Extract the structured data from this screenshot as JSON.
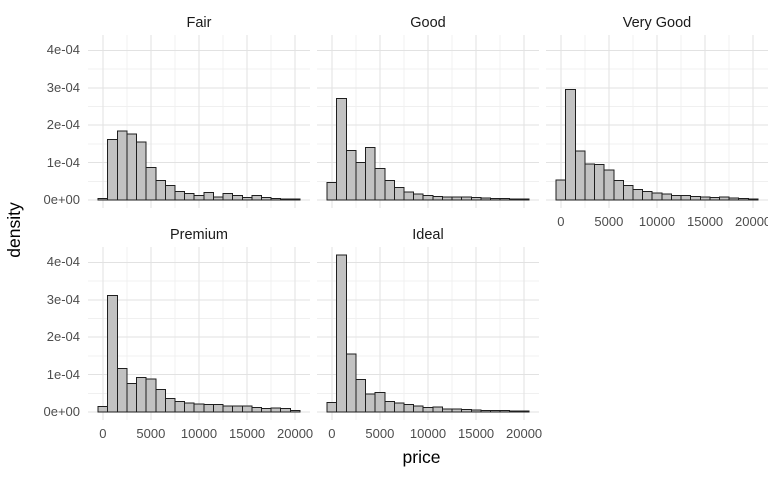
{
  "chart_data": {
    "type": "histogram",
    "title": "",
    "xlabel": "price",
    "ylabel": "density",
    "faceted_by": "cut",
    "facet_layout": {
      "ncol": 3,
      "nrow": 2,
      "style": "facet-wrap, no strip background"
    },
    "grid": {
      "major": true,
      "minor": true,
      "legend": "none",
      "panel_background": "#ffffff"
    },
    "bin_width": 1000,
    "bin_centers": [
      0,
      1000,
      2000,
      3000,
      4000,
      5000,
      6000,
      7000,
      8000,
      9000,
      10000,
      11000,
      12000,
      13000,
      14000,
      15000,
      16000,
      17000,
      18000,
      19000,
      20000
    ],
    "xlim": [
      -1550,
      21550
    ],
    "ylim": [
      -2.1e-05,
      0.000441
    ],
    "x_ticks": [
      {
        "value": 0,
        "label": "0"
      },
      {
        "value": 5000,
        "label": "5000"
      },
      {
        "value": 10000,
        "label": "10000"
      },
      {
        "value": 15000,
        "label": "15000"
      },
      {
        "value": 20000,
        "label": "20000"
      }
    ],
    "x_minor": [
      2500,
      7500,
      12500,
      17500
    ],
    "y_ticks": [
      {
        "value": 0,
        "label": "0e+00"
      },
      {
        "value": 0.0001,
        "label": "1e-04"
      },
      {
        "value": 0.0002,
        "label": "2e-04"
      },
      {
        "value": 0.0003,
        "label": "3e-04"
      },
      {
        "value": 0.0004,
        "label": "4e-04"
      }
    ],
    "y_minor": [
      5e-05,
      0.00015,
      0.00025,
      0.00035
    ],
    "colors": {
      "bar_fill": "#c2c2c2",
      "bar_stroke": "#1f1f1f",
      "grid_major": "#e2e2e2",
      "grid_minor": "#f0f0f0",
      "tick_text": "#4d4d4d",
      "title_text": "#1a1a1a"
    },
    "facets": [
      {
        "label": "Fair",
        "row": 0,
        "col": 0,
        "show_x_axis": false,
        "show_y_axis": true,
        "densities": [
          5e-06,
          0.000162,
          0.000185,
          0.000177,
          0.000155,
          8.7e-05,
          5.2e-05,
          3.9e-05,
          2.3e-05,
          1.8e-05,
          1.2e-05,
          2.1e-05,
          9e-06,
          1.8e-05,
          1.2e-05,
          7e-06,
          1.2e-05,
          7e-06,
          4e-06,
          3e-06,
          1e-06
        ]
      },
      {
        "label": "Good",
        "row": 0,
        "col": 1,
        "show_x_axis": false,
        "show_y_axis": false,
        "densities": [
          4.7e-05,
          0.000271,
          0.000133,
          0.0001,
          0.00014,
          8.5e-05,
          5.3e-05,
          3.4e-05,
          2.2e-05,
          1.6e-05,
          1.3e-05,
          1e-05,
          9e-06,
          8e-06,
          8e-06,
          7e-06,
          6e-06,
          5e-06,
          5e-06,
          3e-06,
          2e-06
        ]
      },
      {
        "label": "Very Good",
        "row": 0,
        "col": 2,
        "show_x_axis": true,
        "show_y_axis": false,
        "densities": [
          5.4e-05,
          0.000295,
          0.000131,
          9.7e-05,
          9.5e-05,
          8e-05,
          5.2e-05,
          3.9e-05,
          2.8e-05,
          2.3e-05,
          1.9e-05,
          1.7e-05,
          1.3e-05,
          1.2e-05,
          1e-05,
          9e-06,
          7e-06,
          8e-06,
          6e-06,
          5e-06,
          3e-06
        ]
      },
      {
        "label": "Premium",
        "row": 1,
        "col": 0,
        "show_x_axis": true,
        "show_y_axis": true,
        "densities": [
          1.5e-05,
          0.000311,
          0.000117,
          7.7e-05,
          9.3e-05,
          8.9e-05,
          6e-05,
          3.7e-05,
          2.9e-05,
          2.5e-05,
          2.2e-05,
          2e-05,
          2e-05,
          1.6e-05,
          1.6e-05,
          1.6e-05,
          1.3e-05,
          1e-05,
          1.1e-05,
          1e-05,
          4e-06
        ]
      },
      {
        "label": "Ideal",
        "row": 1,
        "col": 1,
        "show_x_axis": true,
        "show_y_axis": false,
        "densities": [
          2.6e-05,
          0.00042,
          0.000155,
          8.7e-05,
          4.8e-05,
          5.2e-05,
          2.9e-05,
          2.4e-05,
          2e-05,
          1.6e-05,
          1.2e-05,
          1.4e-05,
          9e-06,
          8e-06,
          7e-06,
          6e-06,
          5e-06,
          5e-06,
          4e-06,
          3e-06,
          2e-06
        ]
      }
    ]
  }
}
